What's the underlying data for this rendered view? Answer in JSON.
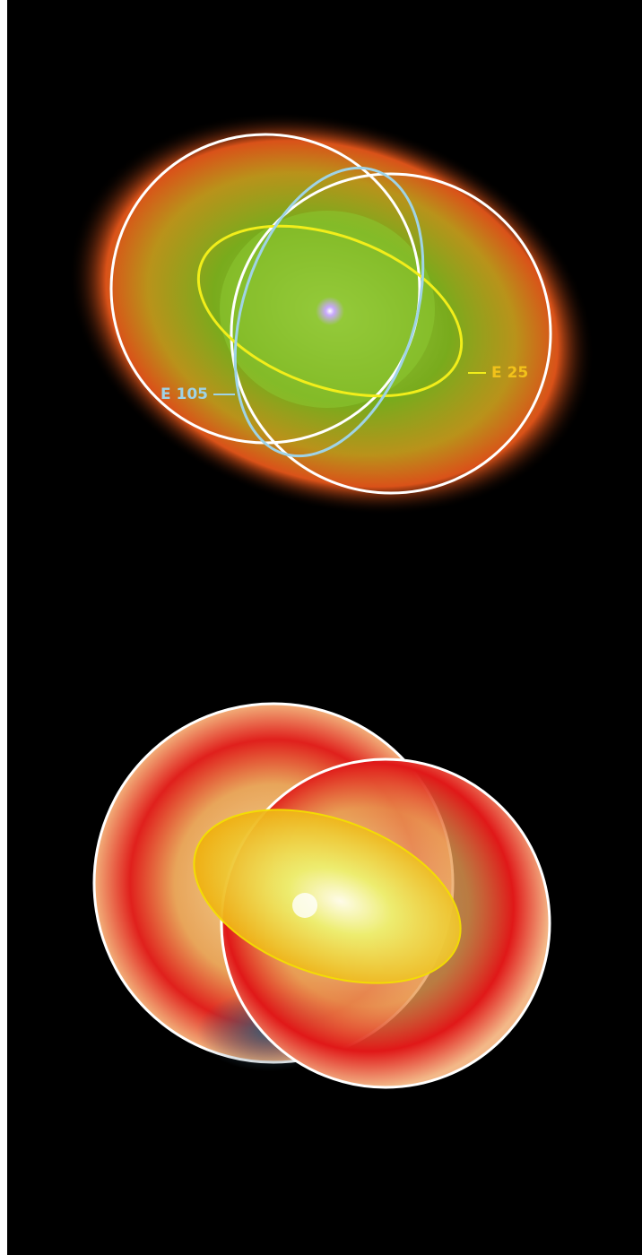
{
  "annotations": [
    {
      "label": "E 105"
    },
    {
      "label": "E 25"
    }
  ]
}
